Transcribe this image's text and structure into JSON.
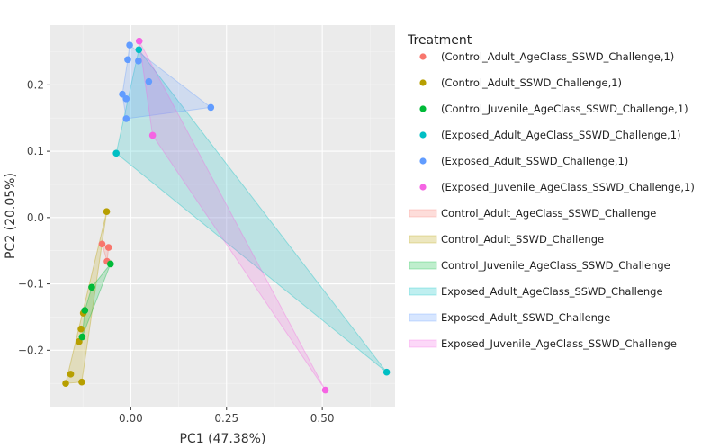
{
  "chart_data": {
    "type": "scatter",
    "title": "",
    "xlabel": "PC1 (47.38%)",
    "ylabel": "PC2 (20.05%)",
    "xlim": [
      -0.21,
      0.69
    ],
    "ylim": [
      -0.285,
      0.29
    ],
    "xticks": [
      {
        "value": 0,
        "label": "0.00"
      },
      {
        "value": 0.25,
        "label": "0.25"
      },
      {
        "value": 0.5,
        "label": "0.50"
      }
    ],
    "yticks": [
      {
        "value": -0.2,
        "label": "−0.2"
      },
      {
        "value": -0.1,
        "label": "−0.1"
      },
      {
        "value": 0.0,
        "label": "0.0"
      },
      {
        "value": 0.1,
        "label": "0.1"
      },
      {
        "value": 0.2,
        "label": "0.2"
      }
    ],
    "grid": true,
    "legend_title": "Treatment",
    "legend_position": "right",
    "series": [
      {
        "name": "Control_Adult_AgeClass_SSWD_Challenge",
        "point_label": "(Control_Adult_AgeClass_SSWD_Challenge,1)",
        "color": "#F8766D",
        "points": [
          [
            -0.075,
            -0.04
          ],
          [
            -0.058,
            -0.045
          ],
          [
            -0.062,
            -0.066
          ]
        ]
      },
      {
        "name": "Control_Adult_SSWD_Challenge",
        "point_label": "(Control_Adult_SSWD_Challenge,1)",
        "color": "#B79F00",
        "points": [
          [
            -0.063,
            0.009
          ],
          [
            -0.17,
            -0.25
          ],
          [
            -0.157,
            -0.236
          ],
          [
            -0.128,
            -0.248
          ],
          [
            -0.135,
            -0.187
          ],
          [
            -0.13,
            -0.168
          ],
          [
            -0.124,
            -0.144
          ]
        ]
      },
      {
        "name": "Control_Juvenile_AgeClass_SSWD_Challenge",
        "point_label": "(Control_Juvenile_AgeClass_SSWD_Challenge,1)",
        "color": "#00BA38",
        "points": [
          [
            -0.053,
            -0.07
          ],
          [
            -0.102,
            -0.105
          ],
          [
            -0.12,
            -0.14
          ],
          [
            -0.127,
            -0.18
          ]
        ]
      },
      {
        "name": "Exposed_Adult_AgeClass_SSWD_Challenge",
        "point_label": "(Exposed_Adult_AgeClass_SSWD_Challenge,1)",
        "color": "#00BFC4",
        "points": [
          [
            -0.038,
            0.097
          ],
          [
            0.021,
            0.253
          ],
          [
            0.668,
            -0.233
          ]
        ]
      },
      {
        "name": "Exposed_Adult_SSWD_Challenge",
        "point_label": "(Exposed_Adult_SSWD_Challenge,1)",
        "color": "#619CFF",
        "points": [
          [
            -0.003,
            0.26
          ],
          [
            -0.008,
            0.238
          ],
          [
            0.02,
            0.236
          ],
          [
            0.047,
            0.205
          ],
          [
            -0.022,
            0.186
          ],
          [
            -0.012,
            0.179
          ],
          [
            0.209,
            0.166
          ],
          [
            -0.012,
            0.149
          ]
        ]
      },
      {
        "name": "Exposed_Juvenile_AgeClass_SSWD_Challenge",
        "point_label": "(Exposed_Juvenile_AgeClass_SSWD_Challenge,1)",
        "color": "#F564E3",
        "points": [
          [
            0.022,
            0.266
          ],
          [
            0.057,
            0.124
          ],
          [
            0.508,
            -0.26
          ]
        ]
      }
    ],
    "hulls": [
      {
        "series": "Control_Adult_AgeClass_SSWD_Challenge",
        "color": "#F8766D",
        "vertices": [
          [
            -0.075,
            -0.04
          ],
          [
            -0.058,
            -0.045
          ],
          [
            -0.062,
            -0.066
          ]
        ]
      },
      {
        "series": "Control_Adult_SSWD_Challenge",
        "color": "#B79F00",
        "vertices": [
          [
            -0.063,
            0.009
          ],
          [
            -0.128,
            -0.248
          ],
          [
            -0.17,
            -0.25
          ]
        ]
      },
      {
        "series": "Control_Juvenile_AgeClass_SSWD_Challenge",
        "color": "#00BA38",
        "vertices": [
          [
            -0.053,
            -0.07
          ],
          [
            -0.127,
            -0.18
          ],
          [
            -0.12,
            -0.14
          ],
          [
            -0.102,
            -0.105
          ]
        ]
      },
      {
        "series": "Exposed_Adult_AgeClass_SSWD_Challenge",
        "color": "#00BFC4",
        "vertices": [
          [
            -0.038,
            0.097
          ],
          [
            0.021,
            0.253
          ],
          [
            0.668,
            -0.233
          ]
        ]
      },
      {
        "series": "Exposed_Adult_SSWD_Challenge",
        "color": "#619CFF",
        "vertices": [
          [
            -0.003,
            0.26
          ],
          [
            0.209,
            0.166
          ],
          [
            -0.012,
            0.149
          ],
          [
            -0.022,
            0.186
          ],
          [
            -0.008,
            0.238
          ]
        ]
      },
      {
        "series": "Exposed_Juvenile_AgeClass_SSWD_Challenge",
        "color": "#F564E3",
        "vertices": [
          [
            0.022,
            0.266
          ],
          [
            0.508,
            -0.26
          ],
          [
            0.057,
            0.124
          ]
        ]
      }
    ]
  }
}
